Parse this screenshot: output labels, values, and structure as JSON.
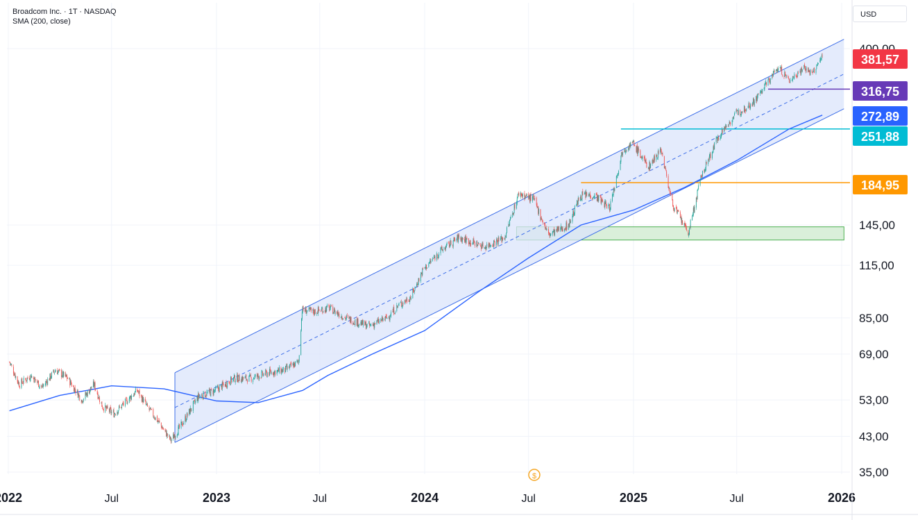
{
  "legend": {
    "symbol_line": "Broadcom Inc. · 1T · NASDAQ",
    "indicator_line": "SMA (200, close)"
  },
  "currency_label": "USD",
  "colors": {
    "up": "#26a69a",
    "down": "#ef5350",
    "sma": "#2962ff",
    "channel_fill": "#dbe4fb",
    "channel_line": "#3d6ee8",
    "zone_fill": "#d4ecd4",
    "zone_line": "#4caf50",
    "last_price": "#f23645",
    "purple": "#673ab7",
    "blue": "#2962ff",
    "cyan": "#00bcd4",
    "orange": "#ff9800"
  },
  "chart_data": {
    "type": "line",
    "scale": "log",
    "y_ticks": [
      "400,00",
      "145,00",
      "115,00",
      "85,00",
      "69,00",
      "53,00",
      "43,00",
      "35,00"
    ],
    "x_ticks": [
      "2022",
      "Jul",
      "2023",
      "Jul",
      "2024",
      "Jul",
      "2025",
      "Jul",
      "2026"
    ],
    "price_labels": [
      {
        "value": "381,57",
        "color": "#f23645"
      },
      {
        "value": "316,75",
        "color": "#673ab7"
      },
      {
        "value": "272,89",
        "color": "#2962ff"
      },
      {
        "value": "251,88",
        "color": "#00bcd4"
      },
      {
        "value": "184,95",
        "color": "#ff9800"
      }
    ],
    "price_series": {
      "name": "Broadcom Inc.",
      "points": [
        [
          "2022-01-03",
          66
        ],
        [
          "2022-01-20",
          58
        ],
        [
          "2022-02-10",
          61
        ],
        [
          "2022-03-01",
          57
        ],
        [
          "2022-03-25",
          63
        ],
        [
          "2022-04-15",
          60
        ],
        [
          "2022-05-10",
          53
        ],
        [
          "2022-05-31",
          58
        ],
        [
          "2022-06-15",
          51
        ],
        [
          "2022-07-05",
          49
        ],
        [
          "2022-08-15",
          56
        ],
        [
          "2022-09-01",
          51
        ],
        [
          "2022-09-20",
          47
        ],
        [
          "2022-10-13",
          42
        ],
        [
          "2022-11-01",
          46
        ],
        [
          "2022-11-30",
          54
        ],
        [
          "2022-12-30",
          56
        ],
        [
          "2023-02-01",
          60
        ],
        [
          "2023-03-01",
          60
        ],
        [
          "2023-04-03",
          62
        ],
        [
          "2023-05-01",
          63
        ],
        [
          "2023-05-25",
          66
        ],
        [
          "2023-05-31",
          89
        ],
        [
          "2023-06-20",
          88
        ],
        [
          "2023-07-17",
          90
        ],
        [
          "2023-08-15",
          85
        ],
        [
          "2023-09-25",
          81
        ],
        [
          "2023-10-27",
          85
        ],
        [
          "2023-11-15",
          91
        ],
        [
          "2023-12-08",
          96
        ],
        [
          "2023-12-29",
          112
        ],
        [
          "2024-01-29",
          125
        ],
        [
          "2024-03-01",
          135
        ],
        [
          "2024-04-15",
          128
        ],
        [
          "2024-05-20",
          135
        ],
        [
          "2024-06-14",
          174
        ],
        [
          "2024-07-10",
          168
        ],
        [
          "2024-08-05",
          137
        ],
        [
          "2024-09-09",
          145
        ],
        [
          "2024-09-30",
          172
        ],
        [
          "2024-10-25",
          172
        ],
        [
          "2024-11-20",
          160
        ],
        [
          "2024-12-13",
          224
        ],
        [
          "2024-12-31",
          232
        ],
        [
          "2025-01-27",
          202
        ],
        [
          "2025-02-18",
          225
        ],
        [
          "2025-03-10",
          164
        ],
        [
          "2025-04-07",
          138
        ],
        [
          "2025-04-30",
          192
        ],
        [
          "2025-05-30",
          242
        ],
        [
          "2025-06-30",
          275
        ],
        [
          "2025-08-01",
          296
        ],
        [
          "2025-09-12",
          360
        ],
        [
          "2025-10-01",
          332
        ],
        [
          "2025-10-27",
          360
        ],
        [
          "2025-11-10",
          345
        ],
        [
          "2025-11-28",
          381.57
        ]
      ]
    },
    "sma_series": {
      "name": "SMA (200, close)",
      "points": [
        [
          "2022-01-03",
          49.8
        ],
        [
          "2022-04-01",
          54.4
        ],
        [
          "2022-07-01",
          57.5
        ],
        [
          "2022-10-01",
          56.5
        ],
        [
          "2023-01-01",
          52.7
        ],
        [
          "2023-03-15",
          52.2
        ],
        [
          "2023-06-01",
          56.0
        ],
        [
          "2023-07-15",
          61.0
        ],
        [
          "2023-10-01",
          69.0
        ],
        [
          "2024-01-01",
          79.0
        ],
        [
          "2024-04-01",
          98.0
        ],
        [
          "2024-07-01",
          120.0
        ],
        [
          "2024-10-01",
          145.0
        ],
        [
          "2025-01-01",
          158.0
        ],
        [
          "2025-04-01",
          180.0
        ],
        [
          "2025-07-01",
          210.0
        ],
        [
          "2025-10-01",
          252.0
        ],
        [
          "2025-11-28",
          272.89
        ]
      ]
    },
    "channel": {
      "start_date": "2022-10-20",
      "end_date": "2026-01-05",
      "upper": [
        62.0,
        422.0
      ],
      "lower": [
        41.5,
        283.0
      ]
    },
    "zone": {
      "start_date": "2024-06-10",
      "end_date": "2026-01-05",
      "low": 133.0,
      "high": 143.5
    },
    "levels": [
      {
        "value": 316.75,
        "start_date": "2025-08-25",
        "color": "#673ab7"
      },
      {
        "value": 251.88,
        "start_date": "2024-12-10",
        "color": "#00bcd4"
      },
      {
        "value": 184.95,
        "start_date": "2024-10-01",
        "color": "#ff9800"
      }
    ]
  }
}
